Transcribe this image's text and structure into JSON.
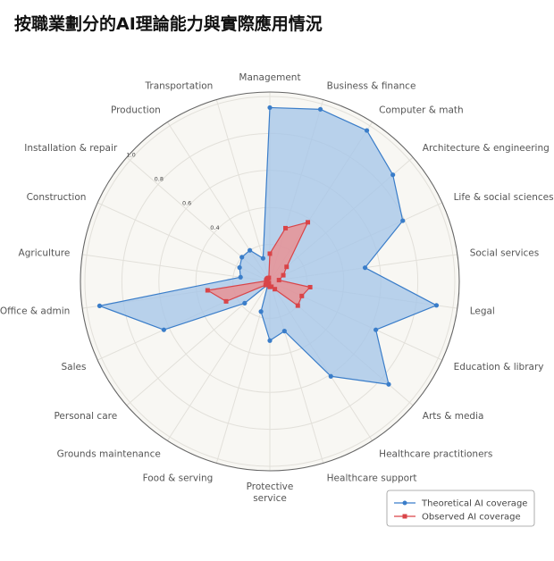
{
  "chart_data": {
    "type": "radar",
    "title": "按職業劃分的AI理論能力與實際應用情況",
    "categories": [
      "Management",
      "Business & finance",
      "Computer & math",
      "Architecture & engineering",
      "Life & social sciences",
      "Social services",
      "Legal",
      "Education & library",
      "Arts & media",
      "Healthcare practitioners",
      "Healthcare support",
      "Protective service",
      "Food & serving",
      "Grounds maintenance",
      "Personal care",
      "Sales",
      "Office & admin",
      "Agriculture",
      "Construction",
      "Installation & repair",
      "Production",
      "Transportation"
    ],
    "radial_ticks": [
      "0.4",
      "0.6",
      "0.8",
      "1.0"
    ],
    "rlim": [
      0,
      1.0
    ],
    "grid": true,
    "legend_position": "bottom-right",
    "series": [
      {
        "name": "Theoretical AI coverage",
        "color": "#3a7dc9",
        "fill": "#a8c7e8",
        "values": [
          0.94,
          0.97,
          0.97,
          0.88,
          0.79,
          0.52,
          0.91,
          0.63,
          0.85,
          0.61,
          0.28,
          0.32,
          0.17,
          0.02,
          0.18,
          0.63,
          0.93,
          0.16,
          0.18,
          0.2,
          0.2,
          0.13
        ]
      },
      {
        "name": "Observed AI coverage",
        "color": "#d94448",
        "fill": "#ef8a8a",
        "values": [
          0.15,
          0.3,
          0.38,
          0.12,
          0.08,
          0.05,
          0.22,
          0.19,
          0.2,
          0.05,
          0.03,
          0.03,
          0.02,
          0.01,
          0.03,
          0.26,
          0.34,
          0.02,
          0.02,
          0.02,
          0.02,
          0.02
        ]
      }
    ]
  }
}
